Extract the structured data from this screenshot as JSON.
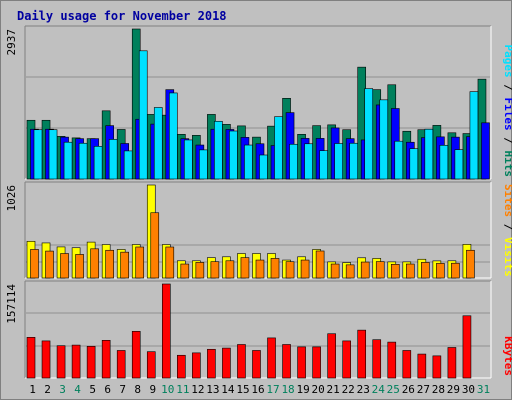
{
  "title": "Daily usage for November 2018",
  "colors": {
    "hits": "#00805c",
    "files": "#0000ff",
    "pages": "#00e0ff",
    "visits": "#ffff00",
    "sites": "#ff8000",
    "kbytes": "#ff0000",
    "weekday_label": "#000000",
    "weekend_label": "#00805c"
  },
  "chart_data": [
    {
      "type": "bar",
      "categories": [
        "1",
        "2",
        "3",
        "4",
        "5",
        "6",
        "7",
        "8",
        "9",
        "10",
        "11",
        "12",
        "13",
        "14",
        "15",
        "16",
        "17",
        "18",
        "19",
        "20",
        "21",
        "22",
        "23",
        "24",
        "25",
        "26",
        "27",
        "28",
        "29",
        "30",
        "31"
      ],
      "ymax_label": "2937",
      "ylim": [
        0,
        2937
      ],
      "axis_title": [
        "Pages",
        "/",
        "Files",
        "/",
        "Hits"
      ],
      "series": [
        {
          "name": "Hits",
          "values": [
            1150,
            1150,
            835,
            805,
            790,
            1335,
            970,
            2937,
            1265,
            1250,
            875,
            855,
            1265,
            1070,
            1040,
            820,
            1035,
            1580,
            875,
            1045,
            1060,
            965,
            2190,
            1750,
            1845,
            935,
            965,
            1050,
            905,
            890,
            1955
          ]
        },
        {
          "name": "Files",
          "values": [
            975,
            975,
            820,
            790,
            790,
            1045,
            695,
            1170,
            1075,
            1750,
            790,
            665,
            975,
            970,
            815,
            690,
            655,
            1300,
            795,
            795,
            1000,
            790,
            765,
            1450,
            1380,
            720,
            810,
            825,
            820,
            830,
            1100
          ]
        },
        {
          "name": "Pages",
          "values": [
            965,
            965,
            720,
            700,
            640,
            775,
            550,
            2510,
            1400,
            1685,
            765,
            570,
            1130,
            940,
            665,
            470,
            1220,
            680,
            690,
            555,
            695,
            700,
            1770,
            1550,
            740,
            595,
            975,
            660,
            575,
            1710,
            0
          ]
        }
      ]
    },
    {
      "type": "bar",
      "categories": [
        "1",
        "2",
        "3",
        "4",
        "5",
        "6",
        "7",
        "8",
        "9",
        "10",
        "11",
        "12",
        "13",
        "14",
        "15",
        "16",
        "17",
        "18",
        "19",
        "20",
        "21",
        "22",
        "23",
        "24",
        "25",
        "26",
        "27",
        "28",
        "29",
        "30",
        "31"
      ],
      "ymax_label": "1026",
      "ylim": [
        0,
        1026
      ],
      "axis_title": [
        "Sites",
        "/",
        "Visits"
      ],
      "series": [
        {
          "name": "Visits",
          "values": [
            405,
            387,
            343,
            334,
            396,
            369,
            315,
            369,
            1026,
            369,
            190,
            190,
            225,
            234,
            270,
            270,
            270,
            198,
            234,
            315,
            178,
            170,
            223,
            216,
            178,
            178,
            207,
            189,
            190,
            371,
            0
          ]
        },
        {
          "name": "Sites",
          "values": [
            315,
            297,
            270,
            260,
            322,
            306,
            285,
            342,
            720,
            342,
            154,
            172,
            180,
            190,
            225,
            198,
            216,
            180,
            198,
            298,
            154,
            145,
            176,
            181,
            151,
            154,
            172,
            161,
            163,
            306,
            0
          ]
        }
      ]
    },
    {
      "type": "bar",
      "categories": [
        "1",
        "2",
        "3",
        "4",
        "5",
        "6",
        "7",
        "8",
        "9",
        "10",
        "11",
        "12",
        "13",
        "14",
        "15",
        "16",
        "17",
        "18",
        "19",
        "20",
        "21",
        "22",
        "23",
        "24",
        "25",
        "26",
        "27",
        "28",
        "29",
        "30",
        "31"
      ],
      "ymax_label": "157114",
      "ylim": [
        0,
        157114
      ],
      "axis_title": [
        "KBytes"
      ],
      "series": [
        {
          "name": "KBytes",
          "values": [
            68000,
            62000,
            54000,
            55000,
            53000,
            63000,
            46000,
            78000,
            44000,
            157114,
            38000,
            42000,
            48000,
            50000,
            56000,
            46000,
            67000,
            56000,
            52000,
            52000,
            74000,
            62000,
            80000,
            64000,
            60000,
            46000,
            40000,
            37000,
            51000,
            104000,
            0
          ]
        }
      ]
    }
  ]
}
